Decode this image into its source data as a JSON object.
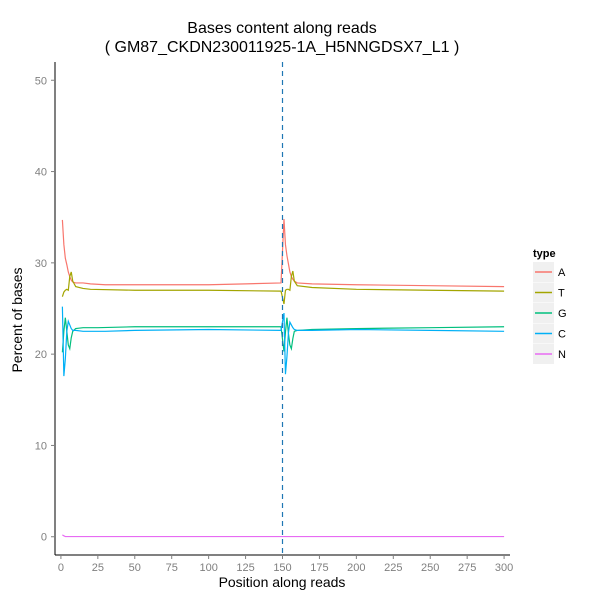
{
  "chart_data": {
    "type": "line",
    "title": "Bases content along reads",
    "subtitle": "( GM87_CKDN230011925-1A_H5NNGDSX7_L1 )",
    "xlabel": "Position along reads",
    "ylabel": "Percent of bases",
    "xlim": [
      -4,
      304
    ],
    "ylim": [
      -2,
      52
    ],
    "x_ticks": [
      0,
      25,
      50,
      75,
      100,
      125,
      150,
      175,
      200,
      225,
      250,
      275,
      300
    ],
    "y_ticks": [
      0,
      10,
      20,
      30,
      40,
      50
    ],
    "grid": false,
    "legend": {
      "title": "type",
      "placement": "right"
    },
    "vline": {
      "x": 150,
      "style": "dashed",
      "color": "#1f77b4"
    },
    "series": [
      {
        "name": "A",
        "color": "#f8766d",
        "points": [
          [
            1,
            34.7
          ],
          [
            2,
            32.0
          ],
          [
            3,
            30.5
          ],
          [
            4,
            29.8
          ],
          [
            5,
            29.0
          ],
          [
            6,
            28.5
          ],
          [
            7,
            28.1
          ],
          [
            8,
            27.9
          ],
          [
            10,
            27.8
          ],
          [
            15,
            27.8
          ],
          [
            20,
            27.7
          ],
          [
            30,
            27.6
          ],
          [
            50,
            27.6
          ],
          [
            75,
            27.6
          ],
          [
            100,
            27.6
          ],
          [
            125,
            27.7
          ],
          [
            149,
            27.8
          ],
          [
            151,
            34.8
          ],
          [
            152,
            32.0
          ],
          [
            153,
            30.8
          ],
          [
            154,
            29.9
          ],
          [
            155,
            29.0
          ],
          [
            156,
            28.5
          ],
          [
            157,
            28.2
          ],
          [
            158,
            28.0
          ],
          [
            160,
            27.8
          ],
          [
            170,
            27.7
          ],
          [
            200,
            27.6
          ],
          [
            250,
            27.5
          ],
          [
            300,
            27.4
          ]
        ]
      },
      {
        "name": "T",
        "color": "#a3a500",
        "points": [
          [
            1,
            26.3
          ],
          [
            2,
            26.8
          ],
          [
            3,
            27.0
          ],
          [
            4,
            27.1
          ],
          [
            5,
            27.0
          ],
          [
            6,
            28.5
          ],
          [
            7,
            29.0
          ],
          [
            8,
            28.0
          ],
          [
            10,
            27.4
          ],
          [
            15,
            27.2
          ],
          [
            20,
            27.1
          ],
          [
            50,
            27.0
          ],
          [
            100,
            27.0
          ],
          [
            149,
            26.9
          ],
          [
            151,
            25.5
          ],
          [
            152,
            27.0
          ],
          [
            153,
            27.1
          ],
          [
            154,
            27.1
          ],
          [
            155,
            27.0
          ],
          [
            156,
            28.5
          ],
          [
            157,
            29.1
          ],
          [
            158,
            28.0
          ],
          [
            160,
            27.5
          ],
          [
            170,
            27.3
          ],
          [
            200,
            27.1
          ],
          [
            250,
            27.0
          ],
          [
            300,
            26.9
          ]
        ]
      },
      {
        "name": "G",
        "color": "#00bf7d",
        "points": [
          [
            1,
            20.2
          ],
          [
            2,
            22.5
          ],
          [
            3,
            24.0
          ],
          [
            4,
            22.5
          ],
          [
            5,
            21.0
          ],
          [
            6,
            20.6
          ],
          [
            7,
            21.8
          ],
          [
            8,
            22.5
          ],
          [
            10,
            22.8
          ],
          [
            15,
            22.9
          ],
          [
            25,
            22.9
          ],
          [
            50,
            23.0
          ],
          [
            100,
            23.0
          ],
          [
            149,
            23.0
          ],
          [
            151,
            20.3
          ],
          [
            152,
            22.4
          ],
          [
            153,
            24.0
          ],
          [
            154,
            22.3
          ],
          [
            155,
            21.0
          ],
          [
            156,
            20.6
          ],
          [
            157,
            21.7
          ],
          [
            158,
            22.5
          ],
          [
            160,
            22.6
          ],
          [
            170,
            22.7
          ],
          [
            200,
            22.8
          ],
          [
            250,
            22.9
          ],
          [
            300,
            23.0
          ]
        ]
      },
      {
        "name": "C",
        "color": "#00b0f6",
        "points": [
          [
            1,
            25.2
          ],
          [
            2,
            17.6
          ],
          [
            3,
            19.5
          ],
          [
            4,
            22.5
          ],
          [
            5,
            23.6
          ],
          [
            6,
            23.2
          ],
          [
            7,
            22.8
          ],
          [
            8,
            22.6
          ],
          [
            10,
            22.6
          ],
          [
            15,
            22.5
          ],
          [
            30,
            22.5
          ],
          [
            50,
            22.6
          ],
          [
            100,
            22.7
          ],
          [
            149,
            22.6
          ],
          [
            151,
            24.5
          ],
          [
            152,
            17.8
          ],
          [
            153,
            19.7
          ],
          [
            154,
            22.3
          ],
          [
            155,
            23.5
          ],
          [
            156,
            23.2
          ],
          [
            157,
            22.9
          ],
          [
            158,
            22.7
          ],
          [
            160,
            22.6
          ],
          [
            170,
            22.6
          ],
          [
            200,
            22.7
          ],
          [
            250,
            22.6
          ],
          [
            300,
            22.5
          ]
        ]
      },
      {
        "name": "N",
        "color": "#e76bf3",
        "points": [
          [
            1,
            0.2
          ],
          [
            2,
            0.1
          ],
          [
            3,
            0.02
          ],
          [
            300,
            0.02
          ]
        ]
      }
    ]
  }
}
